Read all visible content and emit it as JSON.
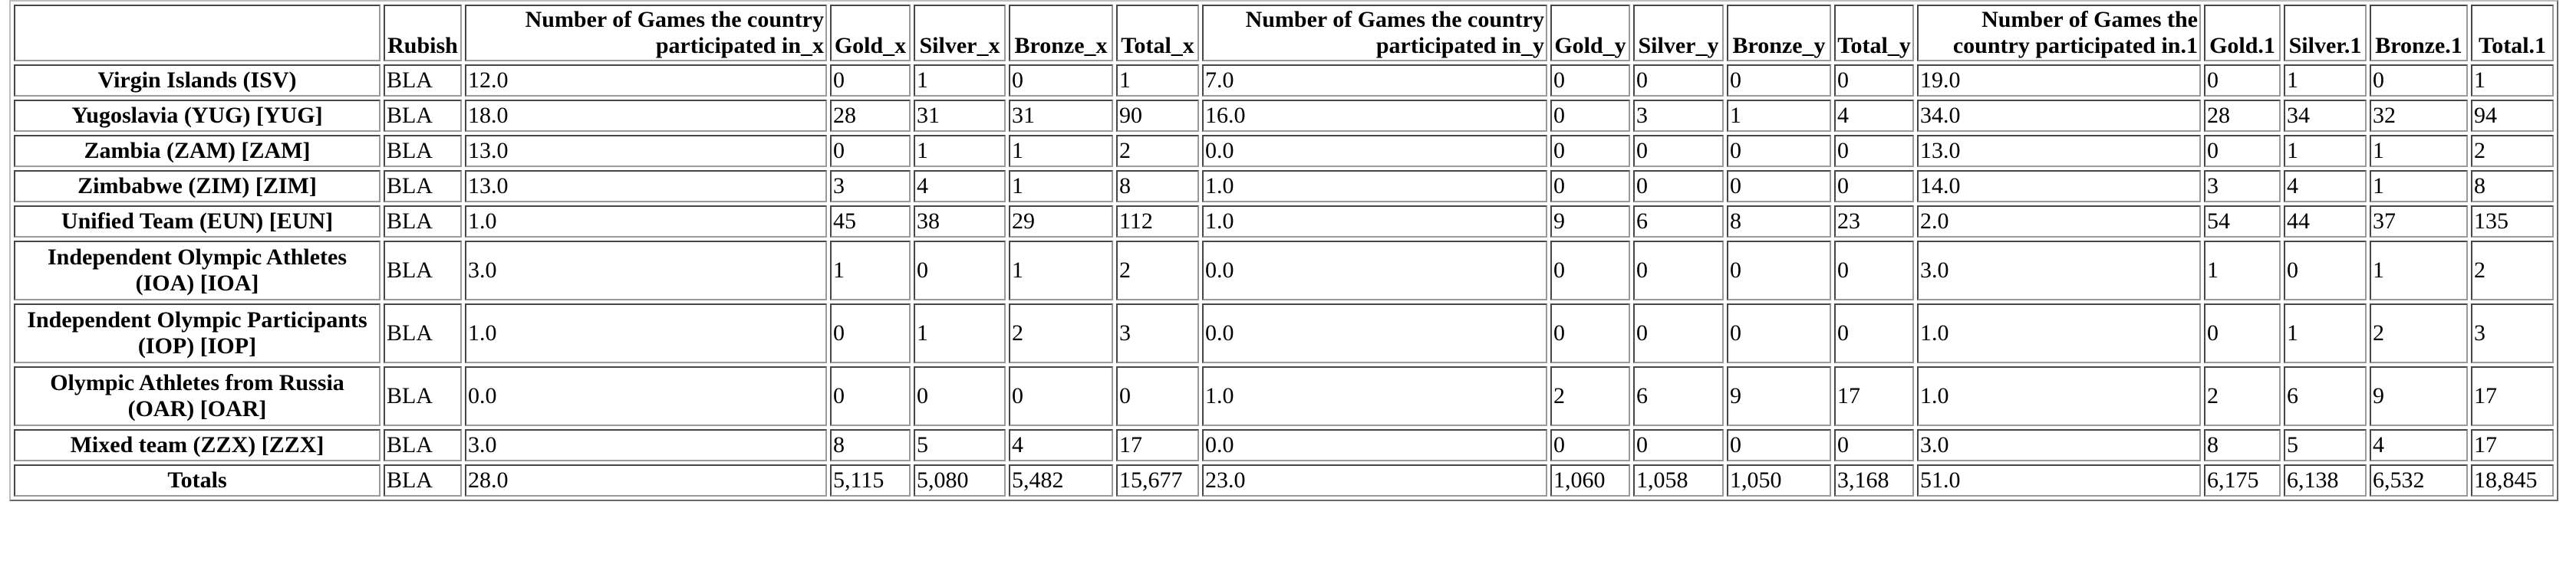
{
  "table": {
    "corner": "",
    "headers": [
      "Rubish",
      "Number of Games the country participated in_x",
      "Gold_x",
      "Silver_x",
      "Bronze_x",
      "Total_x",
      "Number of Games the country participated in_y",
      "Gold_y",
      "Silver_y",
      "Bronze_y",
      "Total_y",
      "Number of Games the country participated in.1",
      "Gold.1",
      "Silver.1",
      "Bronze.1",
      "Total.1"
    ],
    "rows": [
      {
        "name": "Virgin Islands (ISV)",
        "cells": [
          "BLA",
          "12.0",
          "0",
          "1",
          "0",
          "1",
          "7.0",
          "0",
          "0",
          "0",
          "0",
          "19.0",
          "0",
          "1",
          "0",
          "1"
        ]
      },
      {
        "name": "Yugoslavia (YUG) [YUG]",
        "cells": [
          "BLA",
          "18.0",
          "28",
          "31",
          "31",
          "90",
          "16.0",
          "0",
          "3",
          "1",
          "4",
          "34.0",
          "28",
          "34",
          "32",
          "94"
        ]
      },
      {
        "name": "Zambia (ZAM) [ZAM]",
        "cells": [
          "BLA",
          "13.0",
          "0",
          "1",
          "1",
          "2",
          "0.0",
          "0",
          "0",
          "0",
          "0",
          "13.0",
          "0",
          "1",
          "1",
          "2"
        ]
      },
      {
        "name": "Zimbabwe (ZIM) [ZIM]",
        "cells": [
          "BLA",
          "13.0",
          "3",
          "4",
          "1",
          "8",
          "1.0",
          "0",
          "0",
          "0",
          "0",
          "14.0",
          "3",
          "4",
          "1",
          "8"
        ]
      },
      {
        "name": "Unified Team (EUN) [EUN]",
        "cells": [
          "BLA",
          "1.0",
          "45",
          "38",
          "29",
          "112",
          "1.0",
          "9",
          "6",
          "8",
          "23",
          "2.0",
          "54",
          "44",
          "37",
          "135"
        ]
      },
      {
        "name": "Independent Olympic Athletes (IOA) [IOA]",
        "cells": [
          "BLA",
          "3.0",
          "1",
          "0",
          "1",
          "2",
          "0.0",
          "0",
          "0",
          "0",
          "0",
          "3.0",
          "1",
          "0",
          "1",
          "2"
        ]
      },
      {
        "name": "Independent Olympic Participants (IOP) [IOP]",
        "cells": [
          "BLA",
          "1.0",
          "0",
          "1",
          "2",
          "3",
          "0.0",
          "0",
          "0",
          "0",
          "0",
          "1.0",
          "0",
          "1",
          "2",
          "3"
        ]
      },
      {
        "name": "Olympic Athletes from Russia (OAR) [OAR]",
        "cells": [
          "BLA",
          "0.0",
          "0",
          "0",
          "0",
          "0",
          "1.0",
          "2",
          "6",
          "9",
          "17",
          "1.0",
          "2",
          "6",
          "9",
          "17"
        ]
      },
      {
        "name": "Mixed team (ZZX) [ZZX]",
        "cells": [
          "BLA",
          "3.0",
          "8",
          "5",
          "4",
          "17",
          "0.0",
          "0",
          "0",
          "0",
          "0",
          "3.0",
          "8",
          "5",
          "4",
          "17"
        ]
      },
      {
        "name": "Totals",
        "cells": [
          "BLA",
          "28.0",
          "5,115",
          "5,080",
          "5,482",
          "15,677",
          "23.0",
          "1,060",
          "1,058",
          "1,050",
          "3,168",
          "51.0",
          "6,175",
          "6,138",
          "6,532",
          "18,845"
        ]
      }
    ]
  }
}
